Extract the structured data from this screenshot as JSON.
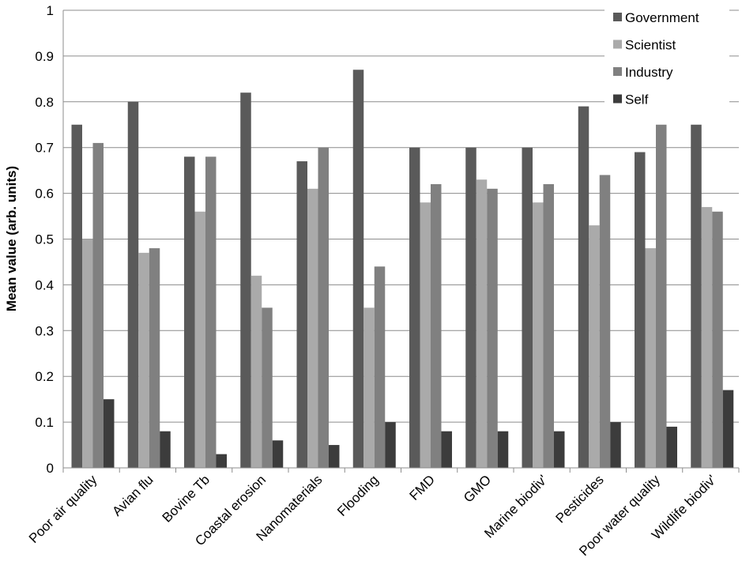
{
  "chart_data": {
    "type": "bar",
    "ylabel": "Mean value (arb. units)",
    "xlabel": "",
    "ylim": [
      0,
      1
    ],
    "yticks": [
      "0",
      "0.1",
      "0.2",
      "0.3",
      "0.4",
      "0.5",
      "0.6",
      "0.7",
      "0.8",
      "0.9",
      "1"
    ],
    "grid": true,
    "legend_position": "top-right",
    "categories": [
      "Poor air quality",
      "Avian flu",
      "Bovine Tb",
      "Coastal erosion",
      "Nanomaterials",
      "Flooding",
      "FMD",
      "GMO",
      "Marine biodiv'",
      "Pesticides",
      "Poor water quality",
      "Wildlife biodiv'"
    ],
    "series": [
      {
        "name": "Government",
        "color": "#5a5a5a",
        "values": [
          0.75,
          0.8,
          0.68,
          0.82,
          0.67,
          0.87,
          0.7,
          0.7,
          0.7,
          0.79,
          0.69,
          0.75
        ]
      },
      {
        "name": "Scientist",
        "color": "#aaaaaa",
        "values": [
          0.5,
          0.47,
          0.56,
          0.42,
          0.61,
          0.35,
          0.58,
          0.63,
          0.58,
          0.53,
          0.48,
          0.57
        ]
      },
      {
        "name": "Industry",
        "color": "#808080",
        "values": [
          0.71,
          0.48,
          0.68,
          0.35,
          0.7,
          0.44,
          0.62,
          0.61,
          0.62,
          0.64,
          0.75,
          0.56
        ]
      },
      {
        "name": "Self",
        "color": "#3c3c3c",
        "values": [
          0.15,
          0.08,
          0.03,
          0.06,
          0.05,
          0.1,
          0.08,
          0.08,
          0.08,
          0.1,
          0.09,
          0.17
        ]
      }
    ]
  }
}
